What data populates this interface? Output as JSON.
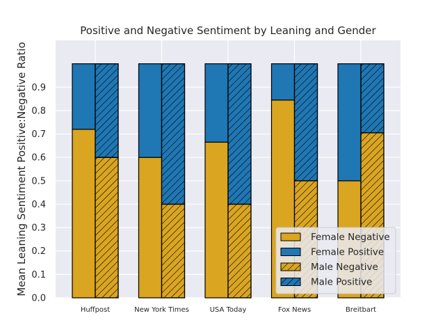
{
  "chart_data": {
    "type": "bar",
    "title": "Positive and Negative Sentiment by Leaning and Gender",
    "xlabel": "",
    "ylabel": "Mean Leaning Sentiment Positive:Negative Ratio",
    "ylim": [
      0,
      1.0
    ],
    "yticks": [
      "0.0",
      "0.1",
      "0.2",
      "0.3",
      "0.4",
      "0.5",
      "0.6",
      "0.7",
      "0.8",
      "0.9"
    ],
    "grid": true,
    "legend_position": "bottom-right",
    "stacked": true,
    "categories": [
      "Huffpost",
      "New York Times",
      "USA Today",
      "Fox News",
      "Breitbart"
    ],
    "series": [
      {
        "name": "Female Negative",
        "group": "Female",
        "color": "#DAA520",
        "hatch": false,
        "values": [
          0.72,
          0.6,
          0.665,
          0.845,
          0.5
        ]
      },
      {
        "name": "Female Positive",
        "group": "Female",
        "color": "#1f77b4",
        "hatch": false,
        "values": [
          0.28,
          0.4,
          0.335,
          0.155,
          0.5
        ]
      },
      {
        "name": "Male Negative",
        "group": "Male",
        "color": "#DAA520",
        "hatch": true,
        "values": [
          0.6,
          0.4,
          0.4,
          0.5,
          0.705
        ]
      },
      {
        "name": "Male Positive",
        "group": "Male",
        "color": "#1f77b4",
        "hatch": true,
        "values": [
          0.4,
          0.6,
          0.6,
          0.5,
          0.295
        ]
      }
    ],
    "colors": {
      "background": "#EAEAF2",
      "grid": "#ffffff",
      "edge": "#000000"
    }
  }
}
